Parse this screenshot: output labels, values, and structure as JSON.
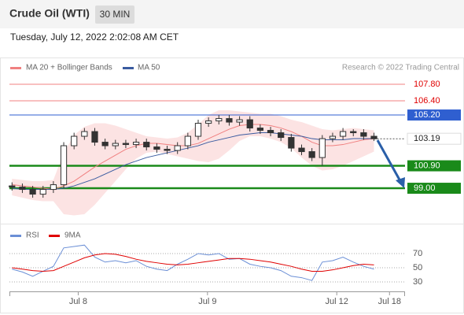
{
  "chart_data": [
    {
      "type": "candlestick",
      "title": "Crude Oil (WTI)",
      "interval": "30 MIN",
      "timestamp": "Tuesday, July 12, 2022 2:02:08 AM CET",
      "credit": "Research © 2022 Trading Central",
      "x": [
        0,
        1,
        2,
        3,
        4,
        5,
        6,
        7,
        8,
        9,
        10,
        11,
        12,
        13,
        14,
        15,
        16,
        17,
        18,
        19,
        20,
        21,
        22,
        23,
        24,
        25,
        26,
        27,
        28,
        29,
        30,
        31,
        32,
        33,
        34,
        35
      ],
      "xlim": [
        -0.25,
        38
      ],
      "xticks": [
        {
          "value": 6.4,
          "label": "Jul 8"
        },
        {
          "value": 18.9,
          "label": "Jul 9"
        },
        {
          "value": 31.4,
          "label": "Jul 12"
        },
        {
          "value": 36.5,
          "label": "Jul 18"
        }
      ],
      "ylim": [
        96.27,
        108.47
      ],
      "open": [
        99.2,
        99.1,
        98.9,
        98.5,
        98.9,
        99.3,
        102.6,
        103.4,
        103.8,
        102.9,
        102.6,
        102.8,
        102.7,
        102.9,
        102.5,
        102.3,
        102.2,
        102.6,
        103.4,
        104.5,
        104.7,
        104.9,
        104.6,
        104.8,
        104.1,
        103.9,
        103.7,
        103.3,
        102.4,
        102.1,
        101.6,
        103.2,
        103.4,
        103.8,
        103.7,
        103.4
      ],
      "high": [
        99.5,
        99.4,
        99.2,
        99.2,
        99.6,
        102.9,
        103.7,
        104.1,
        104.1,
        103.2,
        103.1,
        103.1,
        103.2,
        103.2,
        102.8,
        102.6,
        102.9,
        103.7,
        104.8,
        105.0,
        105.2,
        105.2,
        105.1,
        105.1,
        104.4,
        104.2,
        104.0,
        103.6,
        102.7,
        102.4,
        103.5,
        103.7,
        104.1,
        104.0,
        104.0,
        103.7
      ],
      "low": [
        98.8,
        98.6,
        98.2,
        98.2,
        98.6,
        99.0,
        102.3,
        103.1,
        102.6,
        102.3,
        102.3,
        102.4,
        102.4,
        102.2,
        102.0,
        101.9,
        101.9,
        102.3,
        103.1,
        104.2,
        104.4,
        104.3,
        104.3,
        103.8,
        103.6,
        103.4,
        103.0,
        102.1,
        101.8,
        101.3,
        100.9,
        102.9,
        103.1,
        103.4,
        103.1,
        103.0
      ],
      "close": [
        99.1,
        98.9,
        98.5,
        98.9,
        99.3,
        102.6,
        103.4,
        103.8,
        102.9,
        102.6,
        102.8,
        102.7,
        102.9,
        102.5,
        102.3,
        102.2,
        102.6,
        103.4,
        104.5,
        104.7,
        104.9,
        104.6,
        104.8,
        104.1,
        103.9,
        103.7,
        103.3,
        102.4,
        102.1,
        101.6,
        103.2,
        103.4,
        103.8,
        103.7,
        103.4,
        103.19
      ],
      "series": [
        {
          "name": "MA 20 + Bollinger Bands",
          "color": "#f08080",
          "values": [
            99.3,
            99.2,
            99.1,
            99.0,
            98.9,
            99.2,
            99.6,
            100.2,
            100.8,
            101.3,
            101.8,
            102.3,
            102.6,
            102.8,
            102.8,
            102.7,
            102.6,
            102.6,
            102.8,
            103.2,
            103.6,
            104.0,
            104.3,
            104.4,
            104.4,
            104.3,
            104.1,
            103.8,
            103.4,
            102.9,
            102.6,
            102.6,
            102.7,
            102.9,
            103.1,
            103.2
          ],
          "upper": [
            99.8,
            99.7,
            99.6,
            99.6,
            99.7,
            102.0,
            103.5,
            104.2,
            104.5,
            104.5,
            104.3,
            104.0,
            103.7,
            103.4,
            103.3,
            103.2,
            103.3,
            103.7,
            104.4,
            105.2,
            105.6,
            105.6,
            105.5,
            105.4,
            105.3,
            105.3,
            105.1,
            104.8,
            104.6,
            104.3,
            104.0,
            103.9,
            104.0,
            104.1,
            104.0,
            103.9
          ],
          "lower": [
            98.4,
            98.2,
            98.0,
            97.9,
            97.9,
            96.8,
            96.7,
            96.8,
            97.6,
            98.6,
            99.6,
            100.6,
            101.5,
            102.0,
            102.1,
            101.9,
            101.7,
            101.5,
            101.3,
            101.2,
            101.5,
            102.2,
            103.0,
            103.4,
            103.4,
            103.2,
            102.9,
            102.4,
            101.6,
            100.9,
            100.5,
            100.6,
            100.9,
            101.3,
            101.7,
            102.1
          ]
        },
        {
          "name": "MA 50",
          "color": "#3a5ba0",
          "values": [
            99.0,
            98.9,
            98.9,
            98.9,
            98.9,
            99.0,
            99.2,
            99.5,
            99.8,
            100.2,
            100.6,
            101.0,
            101.3,
            101.6,
            101.8,
            102.0,
            102.2,
            102.4,
            102.6,
            102.9,
            103.1,
            103.3,
            103.5,
            103.6,
            103.7,
            103.7,
            103.6,
            103.5,
            103.4,
            103.2,
            103.1,
            103.1,
            103.1,
            103.2,
            103.2,
            103.2
          ]
        }
      ],
      "levels": [
        {
          "value": 107.8,
          "label": "107.80",
          "color": "#f08080",
          "style": "text"
        },
        {
          "value": 106.4,
          "label": "106.40",
          "color": "#f08080",
          "style": "text"
        },
        {
          "value": 105.2,
          "label": "105.20",
          "color": "#2f5fd0",
          "style": "box"
        },
        {
          "value": 103.19,
          "label": "103.19",
          "color": "#555555",
          "style": "current"
        },
        {
          "value": 100.9,
          "label": "100.90",
          "color": "#1a8a1a",
          "style": "box"
        },
        {
          "value": 99.0,
          "label": "99.00",
          "color": "#1a8a1a",
          "style": "box"
        }
      ]
    },
    {
      "type": "line",
      "ylim": [
        14.4,
        88.9
      ],
      "yticks": [
        30,
        50,
        70
      ],
      "series": [
        {
          "name": "RSI",
          "color": "#6b8fd6",
          "values": [
            48,
            44,
            38,
            45,
            52,
            78,
            80,
            82,
            65,
            58,
            60,
            57,
            60,
            52,
            48,
            46,
            55,
            62,
            70,
            68,
            70,
            62,
            63,
            55,
            52,
            50,
            46,
            38,
            36,
            32,
            58,
            60,
            65,
            58,
            52,
            48
          ]
        },
        {
          "name": "9MA",
          "color": "#e00000",
          "values": [
            50,
            48,
            46,
            45,
            46,
            52,
            58,
            64,
            68,
            70,
            69,
            66,
            62,
            59,
            57,
            55,
            54,
            55,
            57,
            59,
            61,
            63,
            63,
            62,
            60,
            58,
            55,
            52,
            48,
            45,
            45,
            47,
            50,
            53,
            55,
            54
          ]
        }
      ]
    }
  ]
}
